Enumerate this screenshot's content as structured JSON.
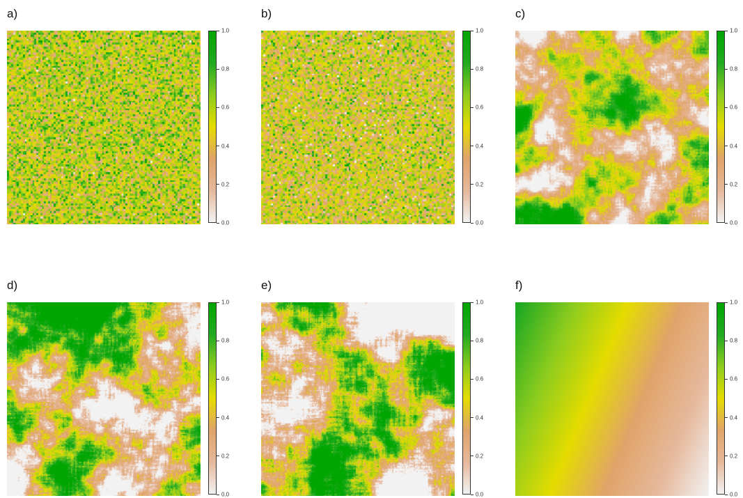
{
  "chart_data": [
    {
      "type": "heatmap",
      "label": "a)",
      "pattern": "random",
      "seed": 11,
      "smooth": 0,
      "mean": 0.55,
      "scale": 1.0,
      "grid": 100,
      "colorbar": {
        "ticks": [
          "0.0",
          "0.2",
          "0.4",
          "0.6",
          "0.8",
          "1.0"
        ],
        "range": [
          0,
          1
        ]
      }
    },
    {
      "type": "heatmap",
      "label": "b)",
      "pattern": "random",
      "seed": 23,
      "smooth": 0,
      "mean": 0.48,
      "scale": 1.0,
      "grid": 100,
      "colorbar": {
        "ticks": [
          "0.0",
          "0.2",
          "0.4",
          "0.6",
          "0.8",
          "1.0"
        ],
        "range": [
          0,
          1
        ]
      }
    },
    {
      "type": "heatmap",
      "label": "c)",
      "pattern": "autocorrelated",
      "seed": 37,
      "smooth": 3,
      "mean": 0.42,
      "scale": 1.6,
      "grid": 120,
      "colorbar": {
        "ticks": [
          "0.0",
          "0.2",
          "0.4",
          "0.6",
          "0.8",
          "1.0"
        ],
        "range": [
          0,
          1
        ]
      }
    },
    {
      "type": "heatmap",
      "label": "d)",
      "pattern": "autocorrelated",
      "seed": 51,
      "smooth": 5,
      "mean": 0.45,
      "scale": 2.2,
      "grid": 140,
      "colorbar": {
        "ticks": [
          "0.0",
          "0.2",
          "0.4",
          "0.6",
          "0.8",
          "1.0"
        ],
        "range": [
          0,
          1
        ]
      }
    },
    {
      "type": "heatmap",
      "label": "e)",
      "pattern": "autocorrelated",
      "seed": 67,
      "smooth": 9,
      "mean": 0.38,
      "scale": 2.6,
      "grid": 160,
      "colorbar": {
        "ticks": [
          "0.0",
          "0.2",
          "0.4",
          "0.6",
          "0.8",
          "1.0"
        ],
        "range": [
          0,
          1
        ]
      }
    },
    {
      "type": "heatmap",
      "label": "f)",
      "pattern": "gradient",
      "direction": "diagonal",
      "range": [
        0,
        0.85
      ],
      "grid": 160,
      "colorbar": {
        "ticks": [
          "0.0",
          "0.2",
          "0.4",
          "0.6",
          "0.8",
          "1.0"
        ],
        "range": [
          0,
          1
        ]
      }
    }
  ],
  "colors": {
    "scale": [
      "#f2f2f2",
      "#e6b89b",
      "#e0a46a",
      "#e5dc00",
      "#8dcc1e",
      "#22aa22",
      "#00a600"
    ]
  }
}
